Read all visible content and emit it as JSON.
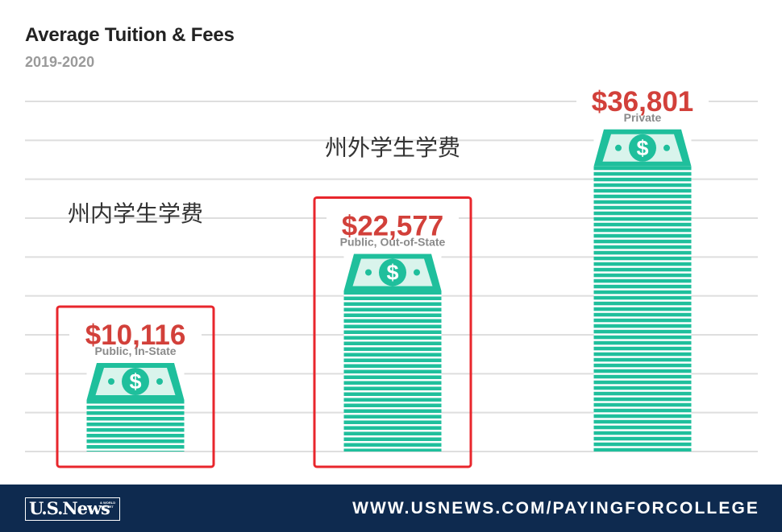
{
  "header": {
    "title": "Average Tuition & Fees",
    "subtitle": "2019-2020"
  },
  "annotations": {
    "in_state_cn": "州内学生学费",
    "out_of_state_cn": "州外学生学费",
    "highlight_color": "#e8262c"
  },
  "chart_data": {
    "type": "bar",
    "title": "Average Tuition & Fees",
    "subtitle": "2019-2020",
    "categories": [
      "Public, In-State",
      "Public, Out-of-State",
      "Private"
    ],
    "values": [
      10116,
      22577,
      36801
    ],
    "value_labels": [
      "$10,116",
      "$22,577",
      "$36,801"
    ],
    "ylim": [
      0,
      40000
    ],
    "grid": true,
    "value_color": "#d2403a",
    "bar_color": "#1fbf9c",
    "bill_color": "#1fbf9c",
    "highlighted_categories": [
      "Public, In-State",
      "Public, Out-of-State"
    ]
  },
  "footer": {
    "logo_text": "U.S.News",
    "logo_small": "& WORLD REPORT",
    "url": "WWW.USNEWS.COM/PAYINGFORCOLLEGE",
    "background": "#0e2a4f"
  }
}
